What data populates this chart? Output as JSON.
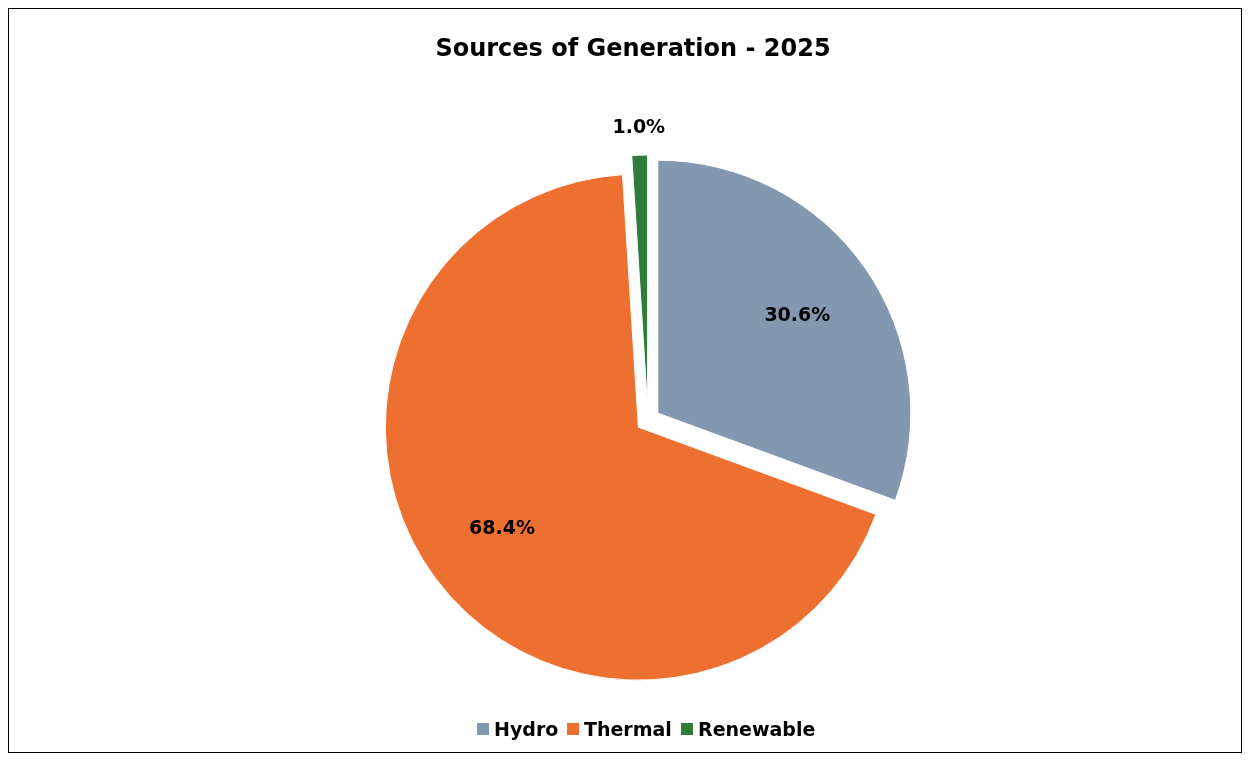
{
  "chart_data": {
    "type": "pie",
    "title": "Sources of Generation - 2025",
    "categories": [
      "Hydro",
      "Thermal",
      "Renewable"
    ],
    "values": [
      30.6,
      68.4,
      1.0
    ],
    "colors": [
      "#8497b0",
      "#ed7031",
      "#2e7d3a"
    ],
    "value_labels": [
      "30.6%",
      "68.4%",
      "1.0%"
    ],
    "legend": "bottom"
  }
}
